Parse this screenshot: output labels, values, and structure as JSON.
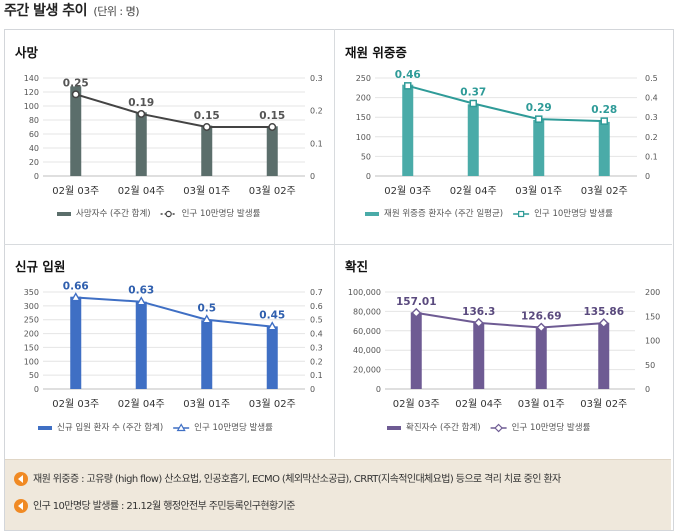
{
  "header": {
    "title": "주간 발생 추이",
    "unit": "(단위 : 명)"
  },
  "categories": [
    "02월 03주",
    "02월 04주",
    "03월 01주",
    "03월 02주"
  ],
  "chart_data": [
    {
      "type": "bar",
      "title": "사망",
      "categories": [
        "02월 03주",
        "02월 04주",
        "03월 01주",
        "03월 02주"
      ],
      "series": [
        {
          "name": "사망자수 (주간 합계)",
          "type": "bar",
          "axis": "left",
          "color": "#5b6e6b",
          "values": [
            128,
            91,
            72,
            71
          ]
        },
        {
          "name": "인구 10만명당 발생률",
          "type": "line",
          "axis": "right",
          "color": "#444444",
          "marker": "circle",
          "values": [
            0.25,
            0.19,
            0.15,
            0.15
          ],
          "labels": [
            "0.25",
            "0.19",
            "0.15",
            "0.15"
          ]
        }
      ],
      "y_left": {
        "ticks": [
          "0",
          "20",
          "40",
          "60",
          "80",
          "100",
          "120",
          "140"
        ],
        "max": 140
      },
      "y_right": {
        "ticks": [
          "0",
          "0.1",
          "0.2",
          "0.3"
        ],
        "max": 0.3
      },
      "label_color": "#555555",
      "legend_placement": "bottom"
    },
    {
      "type": "bar",
      "title": "재원 위중증",
      "categories": [
        "02월 03주",
        "02월 04주",
        "03월 01주",
        "03월 02주"
      ],
      "series": [
        {
          "name": "재원 위중증 환자수 (주간 일평균)",
          "type": "bar",
          "axis": "left",
          "color": "#4aaba8",
          "values": [
            233,
            183,
            143,
            138
          ]
        },
        {
          "name": "인구 10만명당 발생률",
          "type": "line",
          "axis": "right",
          "color": "#2f9b98",
          "marker": "square",
          "values": [
            0.46,
            0.37,
            0.29,
            0.28
          ],
          "labels": [
            "0.46",
            "0.37",
            "0.29",
            "0.28"
          ]
        }
      ],
      "y_left": {
        "ticks": [
          "0",
          "50",
          "100",
          "150",
          "200",
          "250"
        ],
        "max": 250
      },
      "y_right": {
        "ticks": [
          "0",
          "0.1",
          "0.2",
          "0.3",
          "0.4",
          "0.5"
        ],
        "max": 0.5
      },
      "label_color": "#2f9b98",
      "legend_placement": "bottom"
    },
    {
      "type": "bar",
      "title": "신규 입원",
      "categories": [
        "02월 03주",
        "02월 04주",
        "03월 01주",
        "03월 02주"
      ],
      "series": [
        {
          "name": "신규 입원 환자 수 (주간 합계)",
          "type": "bar",
          "axis": "left",
          "color": "#3f6fc4",
          "values": [
            333,
            315,
            248,
            226
          ]
        },
        {
          "name": "인구 10만명당 발생률",
          "type": "line",
          "axis": "right",
          "color": "#3f6fc4",
          "marker": "triangle",
          "values": [
            0.66,
            0.63,
            0.5,
            0.45
          ],
          "labels": [
            "0.66",
            "0.63",
            "0.5",
            "0.45"
          ]
        }
      ],
      "y_left": {
        "ticks": [
          "0",
          "50",
          "100",
          "150",
          "200",
          "250",
          "300",
          "350"
        ],
        "max": 350
      },
      "y_right": {
        "ticks": [
          "0",
          "0.1",
          "0.2",
          "0.3",
          "0.4",
          "0.5",
          "0.6",
          "0.7"
        ],
        "max": 0.7
      },
      "label_color": "#2f5fae",
      "legend_placement": "bottom"
    },
    {
      "type": "bar",
      "title": "확진",
      "categories": [
        "02월 03주",
        "02월 04주",
        "03월 01주",
        "03월 02주"
      ],
      "series": [
        {
          "name": "확진자수 (주간 합계)",
          "type": "bar",
          "axis": "left",
          "color": "#6e5b93",
          "values": [
            79000,
            68500,
            63700,
            68300
          ]
        },
        {
          "name": "인구 10만명당 발생률",
          "type": "line",
          "axis": "right",
          "color": "#6e5b93",
          "marker": "diamond",
          "values": [
            157.01,
            136.3,
            126.69,
            135.86
          ],
          "labels": [
            "157.01",
            "136.3",
            "126.69",
            "135.86"
          ]
        }
      ],
      "y_left": {
        "ticks": [
          "0",
          "20,000",
          "40,000",
          "60,000",
          "80,000",
          "100,000"
        ],
        "max": 100000
      },
      "y_right": {
        "ticks": [
          "0",
          "50",
          "100",
          "150",
          "200"
        ],
        "max": 200
      },
      "label_color": "#5a4a7e",
      "legend_placement": "bottom"
    }
  ],
  "notes": [
    "재원 위중증 : 고유량 (high flow) 산소요법, 인공호흡기, ECMO (체외막산소공급), CRRT(지속적인대체요법) 등으로 격리 치료 중인 환자",
    "인구 10만명당 발생률 : 21.12월 행정안전부 주민등록인구현황기준"
  ],
  "icons": {
    "note": "speaker-icon"
  }
}
